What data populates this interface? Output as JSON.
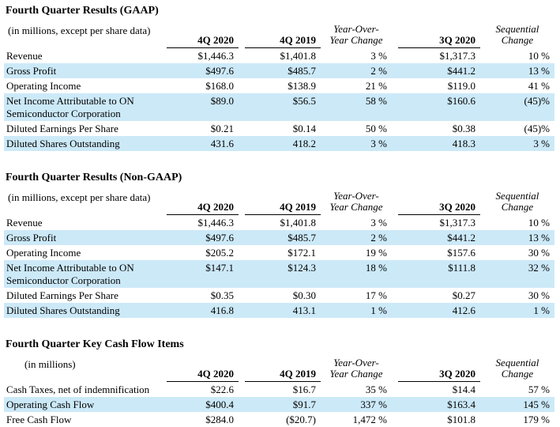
{
  "colors": {
    "highlight_row": "#cce9f8",
    "text": "#000000",
    "background": "#ffffff",
    "header_rule": "#000000"
  },
  "tables": [
    {
      "title": "Fourth Quarter Results (GAAP)",
      "subtitle": "(in millions, except per share data)",
      "columns": [
        "4Q 2020",
        "4Q 2019",
        "Year-Over-\nYear Change",
        "3Q 2020",
        "Sequential\nChange"
      ],
      "rows": [
        {
          "label": "Revenue",
          "values": [
            "$1,446.3",
            "$1,401.8",
            "3 %",
            "$1,317.3",
            "10 %"
          ],
          "highlight": false
        },
        {
          "label": "Gross Profit",
          "values": [
            "$497.6",
            "$485.7",
            "2 %",
            "$441.2",
            "13 %"
          ],
          "highlight": true
        },
        {
          "label": "Operating Income",
          "values": [
            "$168.0",
            "$138.9",
            "21 %",
            "$119.0",
            "41 %"
          ],
          "highlight": false
        },
        {
          "label": "Net Income Attributable to ON Semiconductor Corporation",
          "values": [
            "$89.0",
            "$56.5",
            "58 %",
            "$160.6",
            "(45)%"
          ],
          "highlight": true
        },
        {
          "label": "Diluted Earnings Per Share",
          "values": [
            "$0.21",
            "$0.14",
            "50 %",
            "$0.38",
            "(45)%"
          ],
          "highlight": false
        },
        {
          "label": "Diluted Shares Outstanding",
          "values": [
            "431.6",
            "418.2",
            "3 %",
            "418.3",
            "3 %"
          ],
          "highlight": true
        }
      ]
    },
    {
      "title": "Fourth Quarter Results (Non-GAAP)",
      "subtitle": "(in millions, except per share data)",
      "columns": [
        "4Q 2020",
        "4Q 2019",
        "Year-Over-\nYear Change",
        "3Q 2020",
        "Sequential\nChange"
      ],
      "rows": [
        {
          "label": "Revenue",
          "values": [
            "$1,446.3",
            "$1,401.8",
            "3 %",
            "$1,317.3",
            "10 %"
          ],
          "highlight": false
        },
        {
          "label": "Gross Profit",
          "values": [
            "$497.6",
            "$485.7",
            "2 %",
            "$441.2",
            "13 %"
          ],
          "highlight": true
        },
        {
          "label": "Operating Income",
          "values": [
            "$205.2",
            "$172.1",
            "19 %",
            "$157.6",
            "30 %"
          ],
          "highlight": false
        },
        {
          "label": "Net Income Attributable to ON Semiconductor Corporation",
          "values": [
            "$147.1",
            "$124.3",
            "18 %",
            "$111.8",
            "32 %"
          ],
          "highlight": true
        },
        {
          "label": "Diluted Earnings Per Share",
          "values": [
            "$0.35",
            "$0.30",
            "17 %",
            "$0.27",
            "30 %"
          ],
          "highlight": false
        },
        {
          "label": "Diluted Shares Outstanding",
          "values": [
            "416.8",
            "413.1",
            "1 %",
            "412.6",
            "1 %"
          ],
          "highlight": true
        }
      ]
    },
    {
      "title": "Fourth Quarter Key Cash Flow Items",
      "subtitle": "(in millions)",
      "columns": [
        "4Q 2020",
        "4Q 2019",
        "Year-Over-\nYear Change",
        "3Q 2020",
        "Sequential\nChange"
      ],
      "rows": [
        {
          "label": "Cash Taxes, net of indemnification",
          "values": [
            "$22.6",
            "$16.7",
            "35 %",
            "$14.4",
            "57 %"
          ],
          "highlight": false
        },
        {
          "label": "Operating Cash Flow",
          "values": [
            "$400.4",
            "$91.7",
            "337 %",
            "$163.4",
            "145 %"
          ],
          "highlight": true
        },
        {
          "label": "Free Cash Flow",
          "values": [
            "$284.0",
            "($20.7)",
            "1,472 %",
            "$101.8",
            "179 %"
          ],
          "highlight": false
        }
      ]
    }
  ]
}
